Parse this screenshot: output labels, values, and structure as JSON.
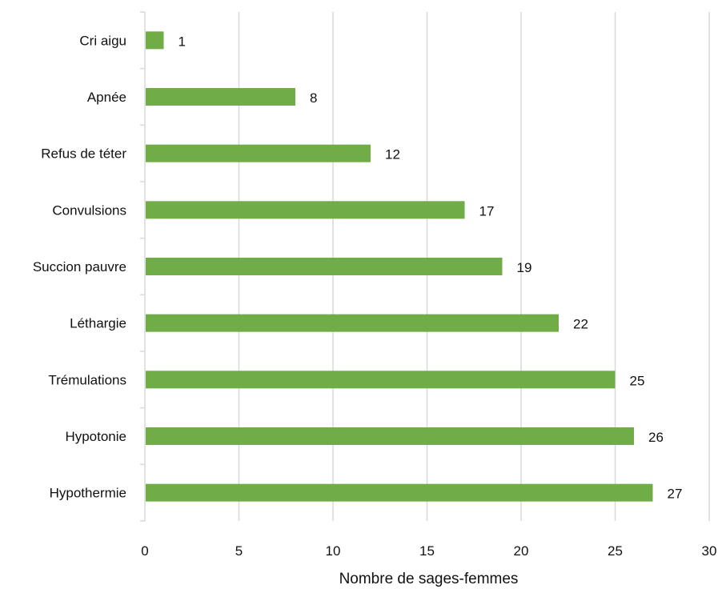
{
  "chart_data": {
    "type": "bar",
    "orientation": "horizontal",
    "categories": [
      "Cri aigu",
      "Apnée",
      "Refus de téter",
      "Convulsions",
      "Succion pauvre",
      "Léthargie",
      "Trémulations",
      "Hypotonie",
      "Hypothermie"
    ],
    "values": [
      1,
      8,
      12,
      17,
      19,
      22,
      25,
      26,
      27
    ],
    "xlabel": "Nombre de sages-femmes",
    "ylabel": "",
    "xlim": [
      0,
      30
    ],
    "xticks": [
      0,
      5,
      10,
      15,
      20,
      25,
      30
    ],
    "grid": true,
    "bar_color": "#70ad47",
    "data_labels": true
  }
}
